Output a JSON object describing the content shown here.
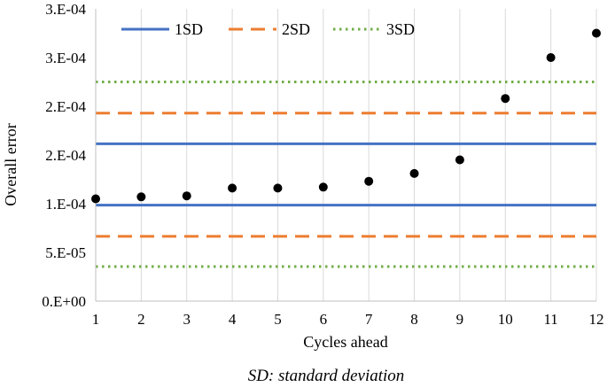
{
  "chart_data": {
    "type": "scatter",
    "title": "",
    "xlabel": "Cycles ahead",
    "ylabel": "Overall error",
    "x": [
      1,
      2,
      3,
      4,
      5,
      6,
      7,
      8,
      9,
      10,
      11,
      12
    ],
    "y_tick_labels": [
      "0.E+00",
      "5.E-05",
      "1.E-04",
      "2.E-04",
      "2.E-04",
      "3.E-04",
      "3.E-04"
    ],
    "x_tick_labels": [
      "1",
      "2",
      "3",
      "4",
      "5",
      "6",
      "7",
      "8",
      "9",
      "10",
      "11",
      "12"
    ],
    "xlim": [
      1,
      12
    ],
    "ylim": [
      0,
      0.0003
    ],
    "grid": "vertical",
    "series": [
      {
        "name": "Overall error",
        "marker": "circle",
        "color": "#000000",
        "values": [
          0.000105,
          0.000107,
          0.000108,
          0.000116,
          0.000116,
          0.000117,
          0.000123,
          0.000131,
          0.000145,
          0.000208,
          0.00025,
          0.000275
        ]
      }
    ],
    "reference_lines": [
      {
        "name": "1SD",
        "style": "solid",
        "color": "#4472C4",
        "values": [
          9.85e-05,
          0.0001615
        ]
      },
      {
        "name": "2SD",
        "style": "dashed",
        "color": "#ED7D31",
        "values": [
          6.65e-05,
          0.000193
        ]
      },
      {
        "name": "3SD",
        "style": "dotted",
        "color": "#70AD47",
        "values": [
          3.55e-05,
          0.000225
        ]
      }
    ],
    "legend": {
      "placement": "top-left",
      "entries": [
        "1SD",
        "2SD",
        "3SD"
      ]
    },
    "caption": "SD: standard deviation"
  }
}
